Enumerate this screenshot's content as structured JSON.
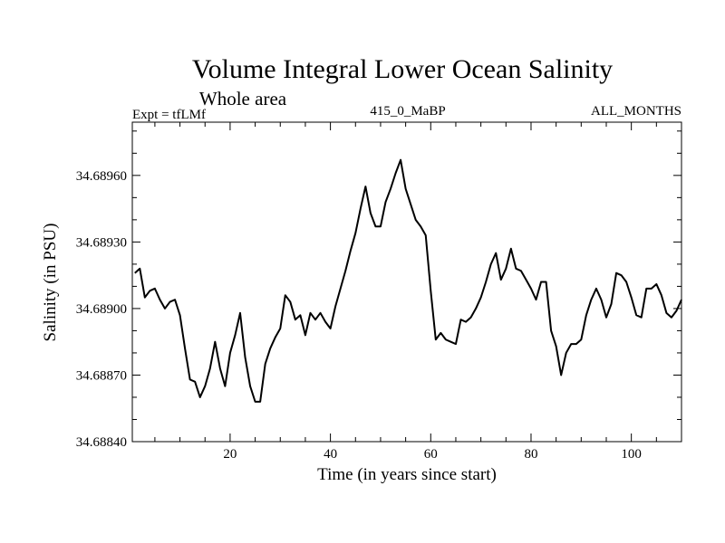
{
  "chart_data": {
    "type": "line",
    "title": "Volume Integral Lower Ocean Salinity",
    "subtitle": "Whole area",
    "header_left": "Expt = tfLMf",
    "header_center": "415_0_MaBP",
    "header_right": "ALL_MONTHS",
    "xlabel": "Time (in years since start)",
    "ylabel": "Salinity (in PSU)",
    "xlim": [
      0.5,
      110
    ],
    "ylim": [
      34.6884,
      34.68984
    ],
    "x_ticks": [
      20,
      40,
      60,
      80,
      100
    ],
    "x_tick_labels": [
      "20",
      "40",
      "60",
      "80",
      "100"
    ],
    "y_ticks": [
      34.6884,
      34.6887,
      34.689,
      34.6893,
      34.6896
    ],
    "y_tick_labels": [
      "34.68840",
      "34.68870",
      "34.68900",
      "34.68930",
      "34.68960"
    ],
    "grid": false,
    "series": [
      {
        "name": "Salinity",
        "x": [
          1,
          2,
          3,
          4,
          5,
          6,
          7,
          8,
          9,
          10,
          11,
          12,
          13,
          14,
          15,
          16,
          17,
          18,
          19,
          20,
          21,
          22,
          23,
          24,
          25,
          26,
          27,
          28,
          29,
          30,
          31,
          32,
          33,
          34,
          35,
          36,
          37,
          38,
          39,
          40,
          41,
          42,
          43,
          44,
          45,
          46,
          47,
          48,
          49,
          50,
          51,
          52,
          53,
          54,
          55,
          56,
          57,
          58,
          59,
          60,
          61,
          62,
          63,
          64,
          65,
          66,
          67,
          68,
          69,
          70,
          71,
          72,
          73,
          74,
          75,
          76,
          77,
          78,
          79,
          80,
          81,
          82,
          83,
          84,
          85,
          86,
          87,
          88,
          89,
          90,
          91,
          92,
          93,
          94,
          95,
          96,
          97,
          98,
          99,
          100,
          101,
          102,
          103,
          104,
          105,
          106,
          107,
          108,
          109,
          110
        ],
        "values": [
          34.68916,
          34.68918,
          34.68905,
          34.68908,
          34.68909,
          34.68904,
          34.689,
          34.68903,
          34.68904,
          34.68897,
          34.68882,
          34.68868,
          34.68867,
          34.6886,
          34.68865,
          34.68873,
          34.68885,
          34.68873,
          34.68865,
          34.6888,
          34.68888,
          34.68898,
          34.68878,
          34.68865,
          34.68858,
          34.68858,
          34.68875,
          34.68882,
          34.68887,
          34.68891,
          34.68906,
          34.68903,
          34.68895,
          34.68897,
          34.68888,
          34.68898,
          34.68895,
          34.68898,
          34.68894,
          34.68891,
          34.68901,
          34.68909,
          34.68917,
          34.68926,
          34.68934,
          34.68945,
          34.68955,
          34.68943,
          34.68937,
          34.68937,
          34.68948,
          34.68954,
          34.68961,
          34.68967,
          34.68954,
          34.68947,
          34.6894,
          34.68937,
          34.68933,
          34.68908,
          34.68886,
          34.68889,
          34.68886,
          34.68885,
          34.68884,
          34.68895,
          34.68894,
          34.68896,
          34.689,
          34.68905,
          34.68912,
          34.6892,
          34.68925,
          34.68913,
          34.68918,
          34.68927,
          34.68918,
          34.68917,
          34.68913,
          34.68909,
          34.68904,
          34.68912,
          34.68912,
          34.6889,
          34.68883,
          34.6887,
          34.6888,
          34.68884,
          34.68884,
          34.68886,
          34.68897,
          34.68904,
          34.68909,
          34.68904,
          34.68896,
          34.68902,
          34.68916,
          34.68915,
          34.68912,
          34.68905,
          34.68897,
          34.68896,
          34.68909,
          34.68909,
          34.68911,
          34.68906,
          34.68898,
          34.68896,
          34.68899,
          34.68904
        ]
      }
    ]
  }
}
